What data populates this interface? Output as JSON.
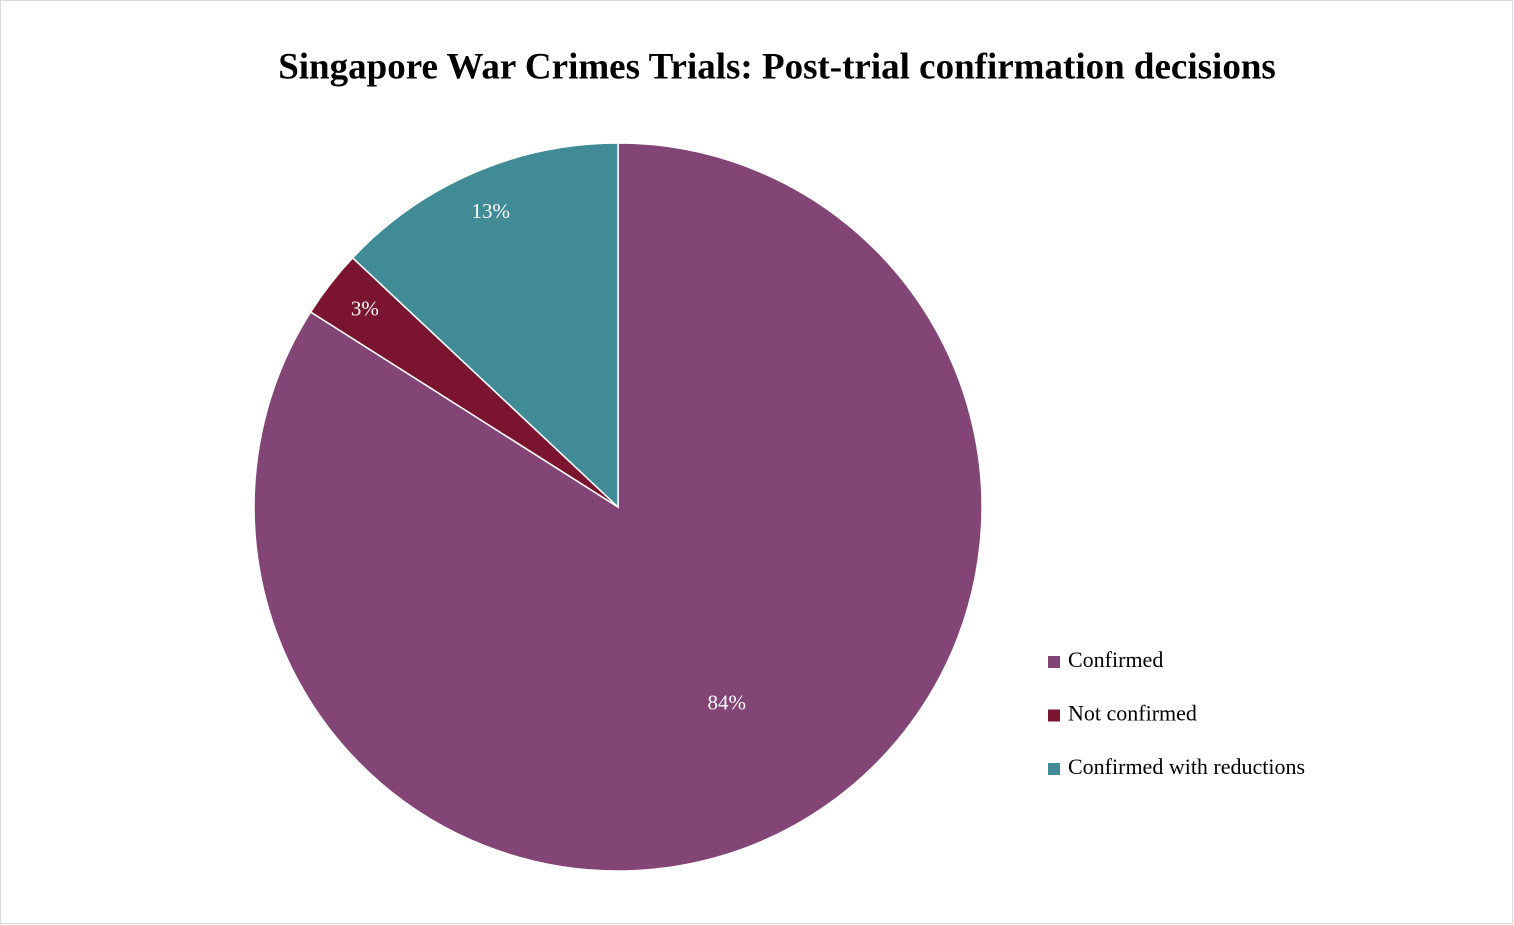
{
  "chart_data": {
    "type": "pie",
    "title": "Singapore War Crimes Trials: Post-trial confirmation decisions",
    "categories": [
      "Confirmed",
      "Not confirmed",
      "Confirmed with reductions"
    ],
    "values": [
      84,
      3,
      13
    ],
    "value_labels": [
      "84%",
      "3%",
      "13%"
    ],
    "colors": [
      "#834576",
      "#7a1430",
      "#418b97"
    ],
    "legend": "right"
  }
}
